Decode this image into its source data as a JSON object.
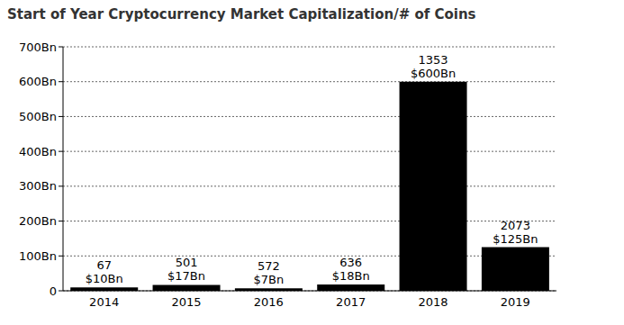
{
  "chart_data": {
    "type": "bar",
    "title": "Start of Year Cryptocurrency Market Capitalization/# of Coins",
    "categories": [
      "2014",
      "2015",
      "2016",
      "2017",
      "2018",
      "2019"
    ],
    "values": [
      10,
      17,
      7,
      18,
      600,
      125
    ],
    "value_labels": [
      "$10Bn",
      "$17Bn",
      "$7Bn",
      "$18Bn",
      "$600Bn",
      "$125Bn"
    ],
    "coins": [
      67,
      501,
      572,
      636,
      1353,
      2073
    ],
    "data_labels": true,
    "color": "#000000",
    "ylim": [
      0,
      700
    ],
    "yticks": [
      0,
      {
        "value": 100,
        "label": "100Bn"
      },
      {
        "value": 200,
        "label": "200Bn"
      },
      {
        "value": 300,
        "label": "300Bn"
      },
      {
        "value": 400,
        "label": "400Bn"
      },
      {
        "value": 500,
        "label": "500Bn"
      },
      {
        "value": 600,
        "label": "600Bn"
      },
      {
        "value": 700,
        "label": "700Bn"
      }
    ],
    "grid": true
  }
}
